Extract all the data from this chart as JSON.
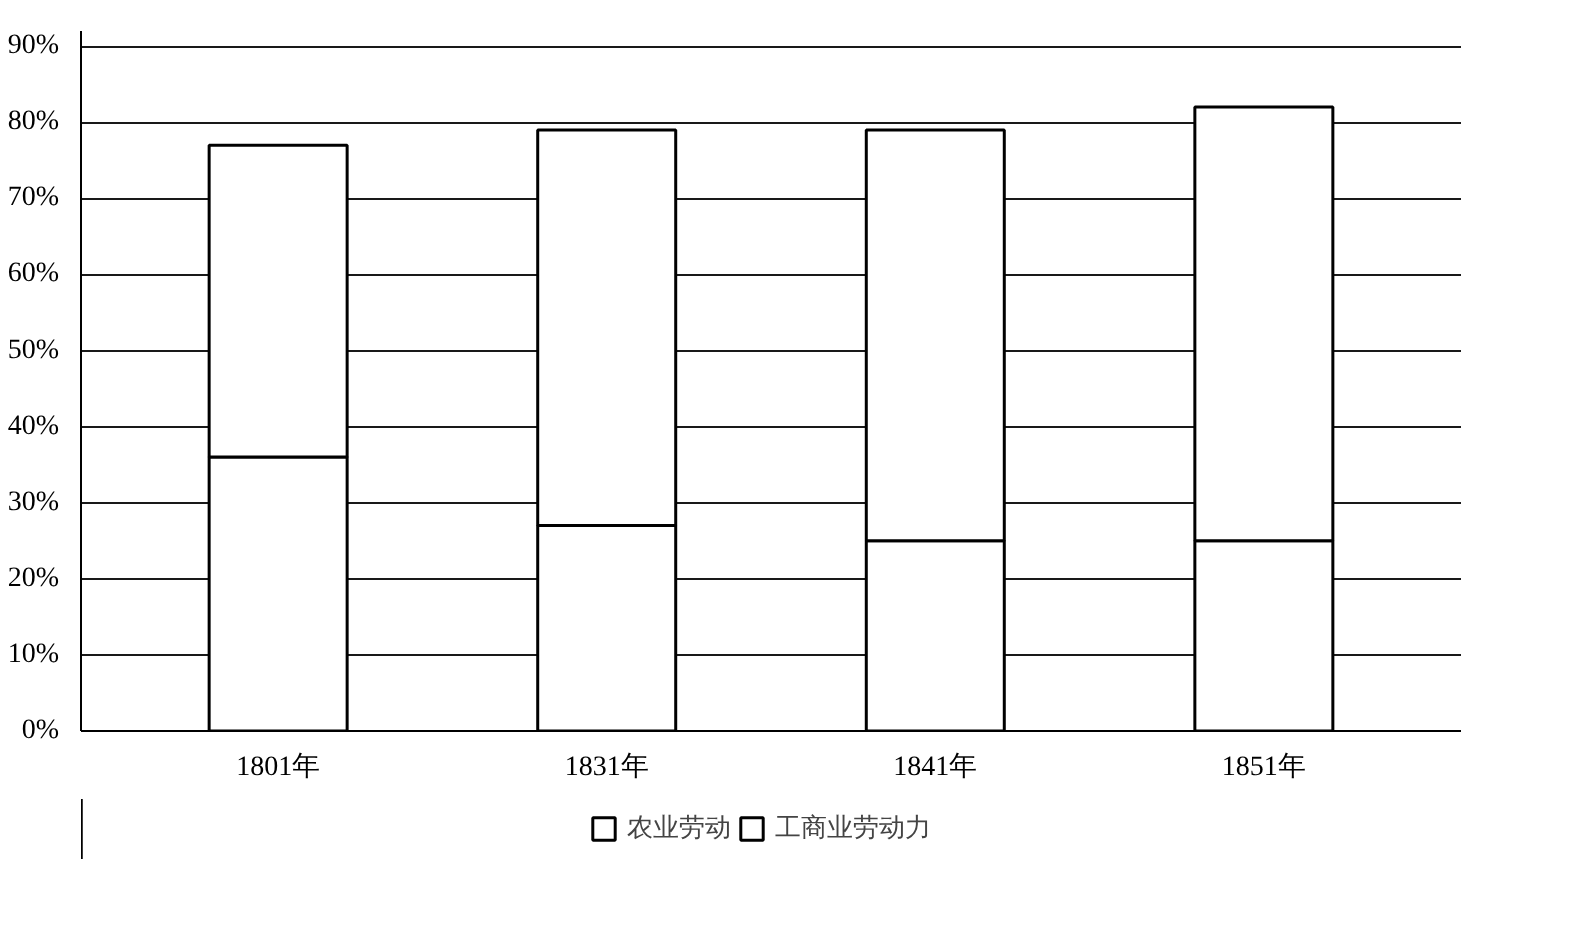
{
  "chart_data": {
    "type": "bar",
    "stacked": true,
    "categories": [
      "1801年",
      "1831年",
      "1841年",
      "1851年"
    ],
    "series": [
      {
        "name": "农业劳动",
        "color": "#ffffff",
        "values": [
          36,
          27,
          25,
          25
        ]
      },
      {
        "name": "工商业劳动力",
        "color": "#ffffff",
        "values": [
          41,
          52,
          54,
          57
        ]
      }
    ],
    "ylim": [
      0,
      92
    ],
    "yticks": [
      {
        "value": 0,
        "label": "0%"
      },
      {
        "value": 10,
        "label": "10%"
      },
      {
        "value": 20,
        "label": "20%"
      },
      {
        "value": 30,
        "label": "30%"
      },
      {
        "value": 40,
        "label": "40%"
      },
      {
        "value": 50,
        "label": "50%"
      },
      {
        "value": 60,
        "label": "60%"
      },
      {
        "value": 70,
        "label": "70%"
      },
      {
        "value": 80,
        "label": "80%"
      },
      {
        "value": 90,
        "label": "90%"
      }
    ],
    "grid": "y",
    "legend": "bottom"
  }
}
